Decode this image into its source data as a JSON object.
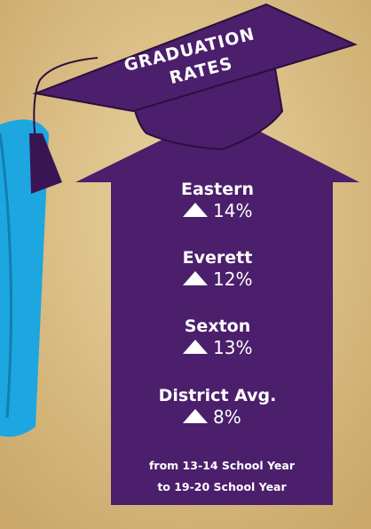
{
  "title": {
    "line1": "GRADUATION",
    "line2": "RATES"
  },
  "schools": [
    {
      "name": "Eastern",
      "change": "14%"
    },
    {
      "name": "Everett",
      "change": "12%"
    },
    {
      "name": "Sexton",
      "change": "13%"
    },
    {
      "name": "District Avg.",
      "change": "8%"
    }
  ],
  "note": {
    "line1": "from 13-14 School Year",
    "line2": "to 19-20 School Year"
  }
}
